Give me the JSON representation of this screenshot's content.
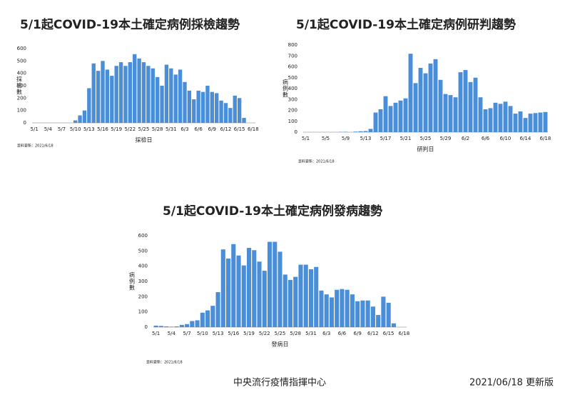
{
  "chart_data": [
    {
      "type": "bar",
      "title": "5/1起COVID-19本土確定病例採檢趨勢",
      "y_label": "採檢數",
      "x_label": "採檢日",
      "note": "資料更新：2021/6/18",
      "categories": [
        "5/1",
        null,
        null,
        "5/4",
        null,
        null,
        "5/7",
        null,
        null,
        "5/10",
        null,
        null,
        "5/13",
        null,
        null,
        "5/16",
        null,
        null,
        "5/19",
        null,
        null,
        "5/22",
        null,
        null,
        "5/25",
        null,
        null,
        "5/28",
        null,
        null,
        "5/31",
        null,
        null,
        "6/3",
        null,
        null,
        "6/6",
        null,
        null,
        "6/9",
        null,
        null,
        "6/12",
        null,
        null,
        "6/15",
        null,
        null,
        "6/18"
      ],
      "values": [
        0,
        0,
        0,
        0,
        0,
        0,
        0,
        0,
        0,
        20,
        60,
        100,
        280,
        480,
        420,
        500,
        430,
        380,
        460,
        490,
        460,
        490,
        555,
        520,
        490,
        460,
        440,
        370,
        300,
        470,
        440,
        390,
        430,
        330,
        260,
        190,
        260,
        250,
        300,
        250,
        240,
        180,
        160,
        120,
        220,
        200,
        40,
        0,
        0
      ],
      "color": "#4a8ed8",
      "ylim": [
        0,
        600
      ],
      "yticks": [
        0,
        100,
        200,
        300,
        400,
        500,
        600
      ]
    },
    {
      "type": "bar",
      "title": "5/1起COVID-19本土確定病例研判趨勢",
      "y_label": "病例數",
      "x_label": "研判日",
      "note": "資料更新：2021/6/18",
      "categories": [
        "5/1",
        null,
        null,
        null,
        "5/5",
        null,
        null,
        null,
        "5/9",
        null,
        null,
        null,
        "5/13",
        null,
        null,
        null,
        "5/17",
        null,
        null,
        null,
        "5/21",
        null,
        null,
        null,
        "5/25",
        null,
        null,
        null,
        "5/29",
        null,
        null,
        null,
        "6/2",
        null,
        null,
        null,
        "6/6",
        null,
        null,
        null,
        "6/10",
        null,
        null,
        null,
        "6/14",
        null,
        null,
        null,
        "6/18"
      ],
      "values": [
        0,
        0,
        0,
        0,
        0,
        0,
        0,
        2,
        3,
        0,
        5,
        8,
        10,
        30,
        180,
        210,
        330,
        240,
        270,
        290,
        310,
        720,
        450,
        590,
        540,
        630,
        670,
        480,
        350,
        340,
        320,
        550,
        570,
        460,
        500,
        320,
        210,
        220,
        270,
        260,
        280,
        240,
        170,
        190,
        130,
        170,
        175,
        180,
        185
      ],
      "color": "#4a8ed8",
      "ylim": [
        0,
        800
      ],
      "yticks": [
        0,
        100,
        200,
        300,
        400,
        500,
        600,
        700,
        800
      ]
    },
    {
      "type": "bar",
      "title": "5/1起COVID-19本土確定病例發病趨勢",
      "y_label": "病例數",
      "x_label": "發病日",
      "note": "資料更新：2021/6/18",
      "categories": [
        "5/1",
        null,
        null,
        "5/4",
        null,
        null,
        "5/7",
        null,
        null,
        "5/10",
        null,
        null,
        "5/13",
        null,
        null,
        "5/16",
        null,
        null,
        "5/19",
        null,
        null,
        "5/22",
        null,
        null,
        "5/25",
        null,
        null,
        "5/28",
        null,
        null,
        "5/31",
        null,
        null,
        "6/3",
        null,
        null,
        "6/6",
        null,
        null,
        "6/9",
        null,
        null,
        "6/12",
        null,
        null,
        "6/15",
        null,
        null,
        "6/18"
      ],
      "values": [
        10,
        8,
        5,
        3,
        5,
        15,
        20,
        40,
        45,
        95,
        110,
        140,
        230,
        510,
        450,
        545,
        470,
        405,
        520,
        505,
        430,
        370,
        560,
        560,
        495,
        345,
        310,
        330,
        410,
        410,
        380,
        395,
        240,
        215,
        195,
        245,
        250,
        245,
        215,
        170,
        175,
        175,
        135,
        80,
        200,
        160,
        25,
        0,
        0
      ],
      "color": "#4a8ed8",
      "ylim": [
        0,
        600
      ],
      "yticks": [
        0,
        100,
        200,
        300,
        400,
        500,
        600
      ]
    }
  ],
  "footer": {
    "org": "中央流行疫情指揮中心",
    "version": "2021/06/18 更新版"
  }
}
